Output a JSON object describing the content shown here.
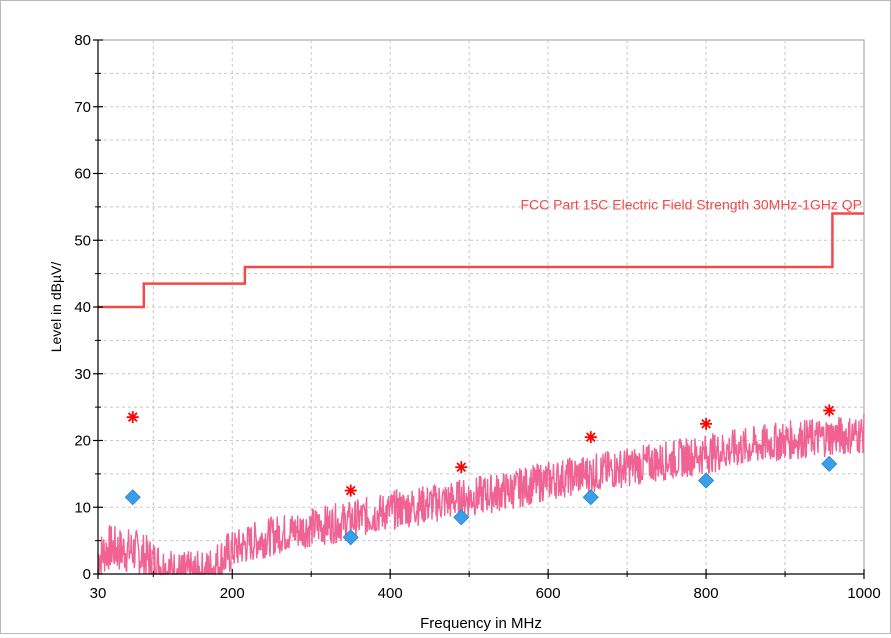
{
  "chart_data": {
    "type": "line",
    "title": "",
    "xlabel": "Frequency in MHz",
    "ylabel": "Level in dBµV/",
    "xlim": [
      30,
      1000
    ],
    "ylim": [
      0,
      80
    ],
    "x_ticks": [
      30,
      200,
      400,
      600,
      800,
      1000
    ],
    "y_ticks": [
      0,
      10,
      20,
      30,
      40,
      50,
      60,
      70,
      80
    ],
    "grid": true,
    "limit_line": {
      "name": "FCC Part 15C Electric Field Strength 30MHz-1GHz QP",
      "color": "#f04a4a",
      "x": [
        30,
        88,
        88,
        216,
        216,
        960,
        960,
        1000
      ],
      "y": [
        40,
        40,
        43.5,
        43.5,
        46,
        46,
        54,
        54
      ]
    },
    "scan_trace": {
      "color": "#f06292",
      "x": [
        30,
        45,
        60,
        75,
        90,
        105,
        120,
        135,
        150,
        165,
        180,
        200,
        230,
        260,
        300,
        350,
        400,
        450,
        500,
        550,
        600,
        650,
        700,
        750,
        800,
        850,
        900,
        950,
        1000
      ],
      "y": [
        2.5,
        4,
        3.5,
        3.5,
        2.5,
        1.5,
        0.5,
        0,
        0,
        0,
        1.5,
        3.5,
        5,
        6,
        7,
        8,
        9.5,
        10.5,
        11.5,
        12.5,
        14,
        15,
        16,
        17,
        18,
        19,
        20,
        20.5,
        21
      ]
    },
    "peak_markers": {
      "color": "#ff0000",
      "symbol": "asterisk",
      "x": [
        74,
        350,
        490,
        654,
        800,
        956
      ],
      "y": [
        23.5,
        12.5,
        16,
        20.5,
        22.5,
        24.5
      ]
    },
    "qp_markers": {
      "color": "#3a9ee8",
      "symbol": "diamond",
      "x": [
        74,
        350,
        490,
        654,
        800,
        956
      ],
      "y": [
        11.5,
        5.5,
        8.5,
        11.5,
        14,
        16.5
      ]
    }
  }
}
